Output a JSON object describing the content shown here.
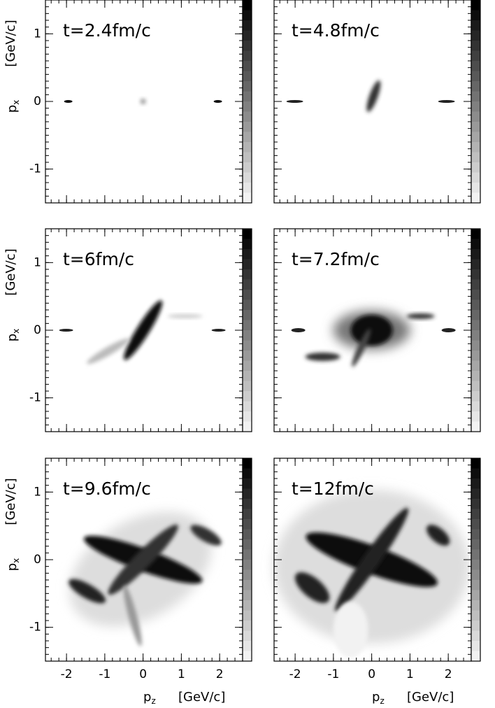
{
  "chart_data": [
    {
      "type": "histogram2d",
      "title": "t=2.4fm/c",
      "xlim": [
        -2.55,
        2.6
      ],
      "ylim": [
        -1.5,
        1.5
      ],
      "xticks": [
        -2,
        -1,
        0,
        1,
        2
      ],
      "yticks": [
        -1,
        0,
        1
      ],
      "ylabel": "p",
      "ylabel_subscript": "x",
      "ylabel_unit": "[GeV/c]"
    },
    {
      "type": "histogram2d",
      "title": "t=4.8fm/c",
      "xlim": [
        -2.55,
        2.6
      ],
      "ylim": [
        -1.5,
        1.5
      ],
      "xticks": [
        -2,
        -1,
        0,
        1,
        2
      ],
      "yticks": [
        -1,
        0,
        1
      ]
    },
    {
      "type": "histogram2d",
      "title": "t=6fm/c",
      "xlim": [
        -2.55,
        2.6
      ],
      "ylim": [
        -1.5,
        1.5
      ],
      "xticks": [
        -2,
        -1,
        0,
        1,
        2
      ],
      "yticks": [
        -1,
        0,
        1
      ],
      "ylabel": "p",
      "ylabel_subscript": "x",
      "ylabel_unit": "[GeV/c]"
    },
    {
      "type": "histogram2d",
      "title": "t=7.2fm/c",
      "xlim": [
        -2.55,
        2.6
      ],
      "ylim": [
        -1.5,
        1.5
      ],
      "xticks": [
        -2,
        -1,
        0,
        1,
        2
      ],
      "yticks": [
        -1,
        0,
        1
      ]
    },
    {
      "type": "histogram2d",
      "title": "t=9.6fm/c",
      "xlim": [
        -2.55,
        2.6
      ],
      "ylim": [
        -1.5,
        1.5
      ],
      "xticks": [
        -2,
        -1,
        0,
        1,
        2
      ],
      "yticks": [
        -1,
        0,
        1
      ],
      "ylabel": "p",
      "ylabel_subscript": "x",
      "ylabel_unit": "[GeV/c]",
      "xlabel": "p",
      "xlabel_subscript": "z",
      "xlabel_unit": "[GeV/c]"
    },
    {
      "type": "histogram2d",
      "title": "t=12fm/c",
      "xlim": [
        -2.55,
        2.6
      ],
      "ylim": [
        -1.5,
        1.5
      ],
      "xticks": [
        -2,
        -1,
        0,
        1,
        2
      ],
      "yticks": [
        -1,
        0,
        1
      ],
      "xlabel": "p",
      "xlabel_subscript": "z",
      "xlabel_unit": "[GeV/c]"
    }
  ]
}
